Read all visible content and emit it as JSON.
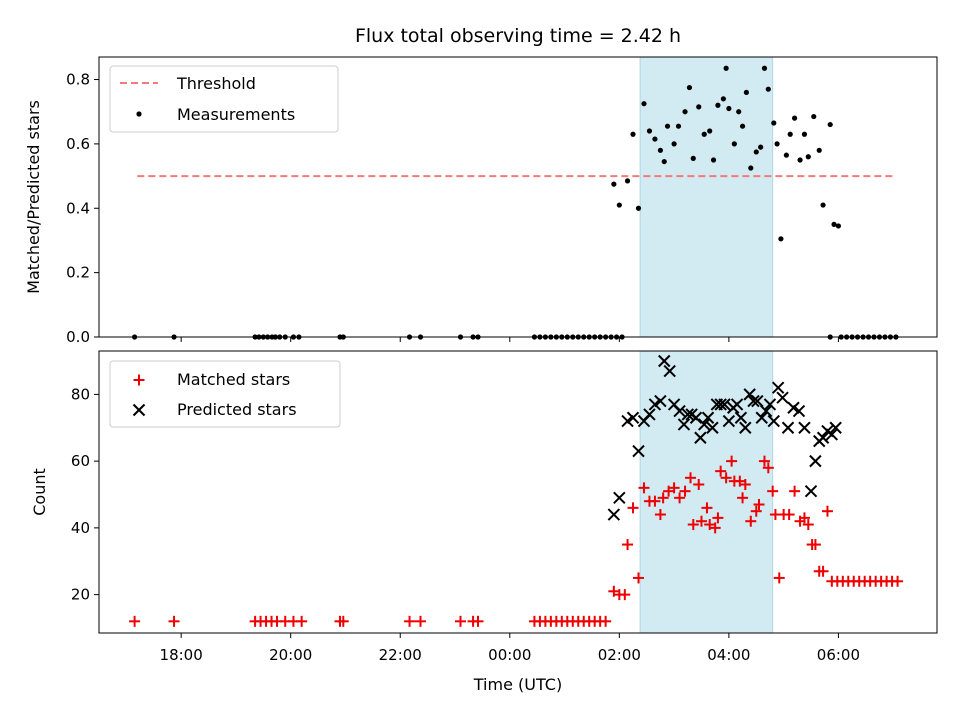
{
  "colors": {
    "threshold": "#f47a7a",
    "measurement": "#000000",
    "matched": "#ee0000",
    "predicted": "#000000",
    "span_fill": "#add8e6",
    "span_opacity": 0.55
  },
  "chart_data": [
    {
      "type": "scatter",
      "title": "Flux total observing time = 2.42 h",
      "xlabel": "",
      "ylabel": "Matched/Predicted stars",
      "ylim": [
        0,
        0.87
      ],
      "yticks": [
        0.0,
        0.2,
        0.4,
        0.6,
        0.8
      ],
      "ytick_labels": [
        "0.0",
        "0.2",
        "0.4",
        "0.6",
        "0.8"
      ],
      "xlim": [
        16.5,
        31.8
      ],
      "grid": false,
      "legend_position": "top-left",
      "span": {
        "x_start": 26.38,
        "x_end": 28.8
      },
      "threshold": {
        "name": "Threshold",
        "y": 0.5,
        "x_start": 17.2,
        "x_end": 31.0
      },
      "series": [
        {
          "name": "Measurements",
          "marker": "dot",
          "points": [
            [
              17.15,
              0
            ],
            [
              17.87,
              0
            ],
            [
              19.35,
              0
            ],
            [
              19.42,
              0
            ],
            [
              19.5,
              0
            ],
            [
              19.58,
              0
            ],
            [
              19.66,
              0
            ],
            [
              19.72,
              0
            ],
            [
              19.8,
              0
            ],
            [
              19.9,
              0
            ],
            [
              20.05,
              0
            ],
            [
              20.15,
              0
            ],
            [
              20.9,
              0
            ],
            [
              20.96,
              0
            ],
            [
              22.17,
              0
            ],
            [
              22.37,
              0
            ],
            [
              23.1,
              0
            ],
            [
              23.33,
              0
            ],
            [
              23.42,
              0
            ],
            [
              24.45,
              0
            ],
            [
              24.55,
              0
            ],
            [
              24.65,
              0
            ],
            [
              24.75,
              0
            ],
            [
              24.85,
              0
            ],
            [
              24.95,
              0
            ],
            [
              25.05,
              0
            ],
            [
              25.15,
              0
            ],
            [
              25.25,
              0
            ],
            [
              25.35,
              0
            ],
            [
              25.45,
              0
            ],
            [
              25.55,
              0
            ],
            [
              25.65,
              0
            ],
            [
              25.75,
              0
            ],
            [
              25.85,
              0
            ],
            [
              25.95,
              0
            ],
            [
              26.05,
              0
            ],
            [
              25.9,
              0.475
            ],
            [
              26.0,
              0.41
            ],
            [
              26.15,
              0.485
            ],
            [
              26.35,
              0.4
            ],
            [
              26.25,
              0.63
            ],
            [
              26.45,
              0.725
            ],
            [
              26.55,
              0.64
            ],
            [
              26.65,
              0.615
            ],
            [
              26.75,
              0.58
            ],
            [
              26.82,
              0.545
            ],
            [
              26.88,
              0.655
            ],
            [
              27.0,
              0.6
            ],
            [
              27.08,
              0.655
            ],
            [
              27.2,
              0.7
            ],
            [
              27.28,
              0.775
            ],
            [
              27.35,
              0.555
            ],
            [
              27.45,
              0.715
            ],
            [
              27.55,
              0.63
            ],
            [
              27.65,
              0.64
            ],
            [
              27.72,
              0.55
            ],
            [
              27.8,
              0.72
            ],
            [
              27.9,
              0.74
            ],
            [
              27.95,
              0.835
            ],
            [
              28.0,
              0.71
            ],
            [
              28.1,
              0.6
            ],
            [
              28.18,
              0.7
            ],
            [
              28.25,
              0.655
            ],
            [
              28.32,
              0.76
            ],
            [
              28.4,
              0.525
            ],
            [
              28.5,
              0.575
            ],
            [
              28.58,
              0.59
            ],
            [
              28.65,
              0.835
            ],
            [
              28.72,
              0.77
            ],
            [
              28.82,
              0.665
            ],
            [
              28.88,
              0.6
            ],
            [
              28.95,
              0.305
            ],
            [
              29.05,
              0.565
            ],
            [
              29.12,
              0.63
            ],
            [
              29.2,
              0.68
            ],
            [
              29.3,
              0.55
            ],
            [
              29.38,
              0.63
            ],
            [
              29.45,
              0.56
            ],
            [
              29.55,
              0.685
            ],
            [
              29.65,
              0.58
            ],
            [
              29.72,
              0.41
            ],
            [
              29.85,
              0.66
            ],
            [
              29.92,
              0.35
            ],
            [
              30.0,
              0.345
            ],
            [
              29.85,
              0
            ],
            [
              30.05,
              0
            ],
            [
              30.15,
              0
            ],
            [
              30.25,
              0
            ],
            [
              30.35,
              0
            ],
            [
              30.45,
              0
            ],
            [
              30.55,
              0
            ],
            [
              30.65,
              0
            ],
            [
              30.75,
              0
            ],
            [
              30.85,
              0
            ],
            [
              30.95,
              0
            ],
            [
              31.05,
              0
            ]
          ]
        }
      ]
    },
    {
      "type": "scatter",
      "title": "",
      "xlabel": "Time (UTC)",
      "ylabel": "Count",
      "ylim": [
        8.5,
        93
      ],
      "yticks": [
        20,
        40,
        60,
        80
      ],
      "ytick_labels": [
        "20",
        "40",
        "60",
        "80"
      ],
      "xlim": [
        16.5,
        31.8
      ],
      "xticks": [
        18,
        20,
        22,
        24,
        26,
        28,
        30
      ],
      "xtick_labels": [
        "18:00",
        "20:00",
        "22:00",
        "00:00",
        "02:00",
        "04:00",
        "06:00"
      ],
      "grid": false,
      "legend_position": "top-left",
      "span": {
        "x_start": 26.38,
        "x_end": 28.8
      },
      "series": [
        {
          "name": "Matched stars",
          "marker": "plus",
          "points": [
            [
              17.15,
              12
            ],
            [
              17.87,
              12
            ],
            [
              19.35,
              12
            ],
            [
              19.45,
              12
            ],
            [
              19.55,
              12
            ],
            [
              19.65,
              12
            ],
            [
              19.75,
              12
            ],
            [
              19.9,
              12
            ],
            [
              20.05,
              12
            ],
            [
              20.2,
              12
            ],
            [
              20.9,
              12
            ],
            [
              20.96,
              12
            ],
            [
              22.17,
              12
            ],
            [
              22.37,
              12
            ],
            [
              23.1,
              12
            ],
            [
              23.33,
              12
            ],
            [
              23.42,
              12
            ],
            [
              24.45,
              12
            ],
            [
              24.55,
              12
            ],
            [
              24.65,
              12
            ],
            [
              24.75,
              12
            ],
            [
              24.85,
              12
            ],
            [
              24.95,
              12
            ],
            [
              25.05,
              12
            ],
            [
              25.15,
              12
            ],
            [
              25.25,
              12
            ],
            [
              25.35,
              12
            ],
            [
              25.45,
              12
            ],
            [
              25.55,
              12
            ],
            [
              25.65,
              12
            ],
            [
              25.75,
              12
            ],
            [
              25.9,
              21
            ],
            [
              26.0,
              20
            ],
            [
              26.1,
              20
            ],
            [
              26.15,
              35
            ],
            [
              26.25,
              46
            ],
            [
              26.35,
              25
            ],
            [
              26.45,
              52
            ],
            [
              26.55,
              48
            ],
            [
              26.65,
              48
            ],
            [
              26.75,
              44
            ],
            [
              26.8,
              49
            ],
            [
              26.9,
              51
            ],
            [
              27.0,
              52
            ],
            [
              27.1,
              49
            ],
            [
              27.2,
              51
            ],
            [
              27.3,
              55
            ],
            [
              27.35,
              41
            ],
            [
              27.45,
              53
            ],
            [
              27.5,
              42
            ],
            [
              27.6,
              46
            ],
            [
              27.65,
              41
            ],
            [
              27.75,
              40
            ],
            [
              27.8,
              43
            ],
            [
              27.85,
              57
            ],
            [
              27.95,
              55
            ],
            [
              28.05,
              60
            ],
            [
              28.1,
              54
            ],
            [
              28.2,
              54
            ],
            [
              28.25,
              49
            ],
            [
              28.3,
              53
            ],
            [
              28.4,
              42
            ],
            [
              28.5,
              45
            ],
            [
              28.55,
              47
            ],
            [
              28.65,
              60
            ],
            [
              28.72,
              58
            ],
            [
              28.8,
              51
            ],
            [
              28.85,
              44
            ],
            [
              28.92,
              25
            ],
            [
              29.0,
              44
            ],
            [
              29.1,
              44
            ],
            [
              29.2,
              51
            ],
            [
              29.3,
              42
            ],
            [
              29.38,
              43
            ],
            [
              29.45,
              41
            ],
            [
              29.52,
              35
            ],
            [
              29.58,
              35
            ],
            [
              29.65,
              27
            ],
            [
              29.72,
              27
            ],
            [
              29.8,
              45
            ],
            [
              29.88,
              24
            ],
            [
              29.98,
              24
            ],
            [
              30.08,
              24
            ],
            [
              30.18,
              24
            ],
            [
              30.28,
              24
            ],
            [
              30.38,
              24
            ],
            [
              30.48,
              24
            ],
            [
              30.58,
              24
            ],
            [
              30.68,
              24
            ],
            [
              30.78,
              24
            ],
            [
              30.88,
              24
            ],
            [
              30.98,
              24
            ],
            [
              31.08,
              24
            ]
          ]
        },
        {
          "name": "Predicted stars",
          "marker": "x",
          "points": [
            [
              25.9,
              44
            ],
            [
              26.0,
              49
            ],
            [
              26.15,
              72
            ],
            [
              26.25,
              73
            ],
            [
              26.35,
              63
            ],
            [
              26.45,
              72
            ],
            [
              26.55,
              74
            ],
            [
              26.65,
              77
            ],
            [
              26.75,
              78
            ],
            [
              26.82,
              90
            ],
            [
              26.92,
              87
            ],
            [
              27.0,
              77
            ],
            [
              27.1,
              75
            ],
            [
              27.18,
              71
            ],
            [
              27.25,
              74
            ],
            [
              27.32,
              74
            ],
            [
              27.4,
              73
            ],
            [
              27.48,
              67
            ],
            [
              27.55,
              71
            ],
            [
              27.62,
              73
            ],
            [
              27.7,
              70
            ],
            [
              27.78,
              77
            ],
            [
              27.85,
              77
            ],
            [
              27.92,
              77
            ],
            [
              28.0,
              72
            ],
            [
              28.08,
              76
            ],
            [
              28.15,
              77
            ],
            [
              28.22,
              73
            ],
            [
              28.3,
              70
            ],
            [
              28.38,
              80
            ],
            [
              28.45,
              78
            ],
            [
              28.52,
              78
            ],
            [
              28.6,
              73
            ],
            [
              28.68,
              75
            ],
            [
              28.75,
              77
            ],
            [
              28.82,
              72
            ],
            [
              28.9,
              82
            ],
            [
              28.98,
              79
            ],
            [
              29.08,
              70
            ],
            [
              29.18,
              76
            ],
            [
              29.28,
              75
            ],
            [
              29.38,
              70
            ],
            [
              29.5,
              51
            ],
            [
              29.58,
              60
            ],
            [
              29.65,
              66
            ],
            [
              29.72,
              67
            ],
            [
              29.8,
              69
            ],
            [
              29.88,
              68
            ],
            [
              29.95,
              70
            ]
          ]
        }
      ]
    }
  ]
}
